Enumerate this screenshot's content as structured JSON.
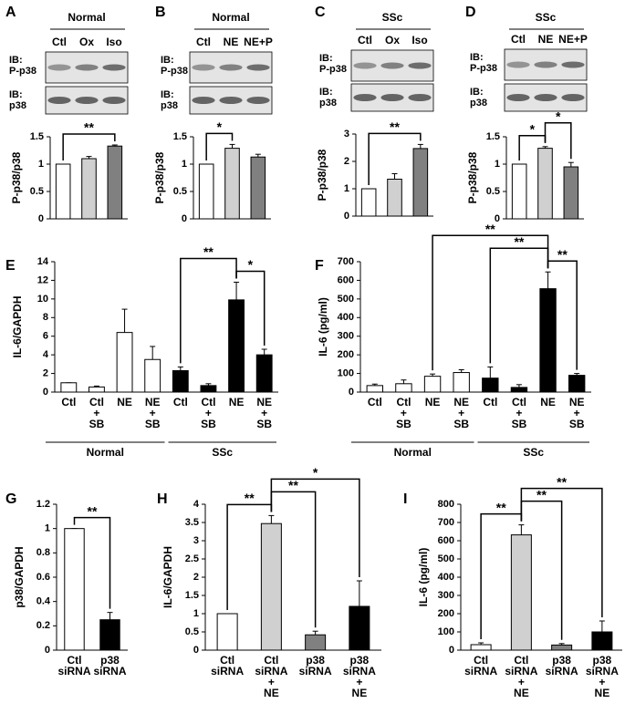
{
  "chart_data": [
    {
      "type": "bar",
      "panel": "A",
      "group": "Normal",
      "categories": [
        "Ctl",
        "Ox",
        "Iso"
      ],
      "blot_rows": [
        [
          "IB:",
          "P-p38"
        ],
        [
          "IB:",
          "p38"
        ]
      ],
      "ylabel": "P-p38/p38",
      "values": [
        1,
        1.1,
        1.33
      ],
      "errors": [
        0,
        0.04,
        0.02
      ],
      "colors": [
        "#ffffff",
        "#d0d0d0",
        "#808080"
      ],
      "ylim": [
        0,
        1.5
      ],
      "yticks": [
        0,
        0.5,
        1,
        1.5
      ],
      "significance": [
        {
          "between": [
            0,
            2
          ],
          "label": "**"
        }
      ]
    },
    {
      "type": "bar",
      "panel": "B",
      "group": "Normal",
      "categories": [
        "Ctl",
        "NE",
        "NE+P"
      ],
      "blot_rows": [
        [
          "IB:",
          "P-p38"
        ],
        [
          "IB:",
          "p38"
        ]
      ],
      "ylabel": "P-p38/p38",
      "values": [
        1,
        1.29,
        1.13
      ],
      "errors": [
        0,
        0.07,
        0.05
      ],
      "colors": [
        "#ffffff",
        "#d0d0d0",
        "#808080"
      ],
      "ylim": [
        0,
        1.5
      ],
      "yticks": [
        0,
        0.5,
        1,
        1.5
      ],
      "significance": [
        {
          "between": [
            0,
            1
          ],
          "label": "*"
        }
      ]
    },
    {
      "type": "bar",
      "panel": "C",
      "group": "SSc",
      "categories": [
        "Ctl",
        "Ox",
        "Iso"
      ],
      "blot_rows": [
        [
          "IB:",
          "P-p38"
        ],
        [
          "IB:",
          "p38"
        ]
      ],
      "ylabel": "P-p38/p38",
      "values": [
        1,
        1.35,
        2.47
      ],
      "errors": [
        0,
        0.2,
        0.15
      ],
      "colors": [
        "#ffffff",
        "#d0d0d0",
        "#808080"
      ],
      "ylim": [
        0,
        3
      ],
      "yticks": [
        0,
        1,
        2,
        3
      ],
      "significance": [
        {
          "between": [
            0,
            2
          ],
          "label": "**"
        }
      ]
    },
    {
      "type": "bar",
      "panel": "D",
      "group": "SSc",
      "categories": [
        "Ctl",
        "NE",
        "NE+P"
      ],
      "blot_rows": [
        [
          "IB:",
          "P-p38"
        ],
        [
          "IB:",
          "p38"
        ]
      ],
      "ylabel": "P-p38/p38",
      "values": [
        1,
        1.29,
        0.95
      ],
      "errors": [
        0,
        0.03,
        0.08
      ],
      "colors": [
        "#ffffff",
        "#d0d0d0",
        "#808080"
      ],
      "ylim": [
        0,
        1.5
      ],
      "yticks": [
        0,
        0.5,
        1,
        1.5
      ],
      "significance": [
        {
          "between": [
            0,
            1
          ],
          "label": "*"
        },
        {
          "between": [
            1,
            2
          ],
          "label": "*"
        }
      ]
    },
    {
      "type": "bar",
      "panel": "E",
      "ylabel": "IL-6/GAPDH",
      "categories": [
        [
          "Ctl"
        ],
        [
          "Ctl",
          "+",
          "SB"
        ],
        [
          "NE"
        ],
        [
          "NE",
          "+",
          "SB"
        ],
        [
          "Ctl"
        ],
        [
          "Ctl",
          "+",
          "SB"
        ],
        [
          "NE"
        ],
        [
          "NE",
          "+",
          "SB"
        ]
      ],
      "values": [
        1,
        0.55,
        6.4,
        3.5,
        2.3,
        0.7,
        9.9,
        4.0
      ],
      "errors": [
        0,
        0.1,
        2.5,
        1.4,
        0.4,
        0.2,
        1.9,
        0.6
      ],
      "colors": [
        "#ffffff",
        "#ffffff",
        "#ffffff",
        "#ffffff",
        "#000000",
        "#000000",
        "#000000",
        "#000000"
      ],
      "ylim": [
        0,
        14
      ],
      "yticks": [
        0,
        2,
        4,
        6,
        8,
        10,
        12,
        14
      ],
      "groups": [
        {
          "label": "Normal",
          "from": 0,
          "to": 3
        },
        {
          "label": "SSc",
          "from": 4,
          "to": 7
        }
      ],
      "significance": [
        {
          "between": [
            4,
            6
          ],
          "label": "**"
        },
        {
          "between": [
            6,
            7
          ],
          "label": "*"
        }
      ]
    },
    {
      "type": "bar",
      "panel": "F",
      "ylabel": "IL-6 (pg/ml)",
      "categories": [
        [
          "Ctl"
        ],
        [
          "Ctl",
          "+",
          "SB"
        ],
        [
          "NE"
        ],
        [
          "NE",
          "+",
          "SB"
        ],
        [
          "Ctl"
        ],
        [
          "Ctl",
          "+",
          "SB"
        ],
        [
          "NE"
        ],
        [
          "NE",
          "+",
          "SB"
        ]
      ],
      "values": [
        35,
        45,
        85,
        105,
        75,
        25,
        555,
        90
      ],
      "errors": [
        8,
        20,
        12,
        15,
        60,
        15,
        90,
        10
      ],
      "colors": [
        "#ffffff",
        "#ffffff",
        "#ffffff",
        "#ffffff",
        "#000000",
        "#000000",
        "#000000",
        "#000000"
      ],
      "ylim": [
        0,
        700
      ],
      "yticks": [
        0,
        100,
        200,
        300,
        400,
        500,
        600,
        700
      ],
      "groups": [
        {
          "label": "Normal",
          "from": 0,
          "to": 3
        },
        {
          "label": "SSc",
          "from": 4,
          "to": 7
        }
      ],
      "significance": [
        {
          "between": [
            2,
            6
          ],
          "label": "**"
        },
        {
          "between": [
            4,
            6
          ],
          "label": "**"
        },
        {
          "between": [
            6,
            7
          ],
          "label": "**"
        }
      ]
    },
    {
      "type": "bar",
      "panel": "G",
      "ylabel": "p38/GAPDH",
      "categories": [
        [
          "Ctl",
          "siRNA"
        ],
        [
          "p38",
          "siRNA"
        ]
      ],
      "values": [
        1,
        0.25
      ],
      "errors": [
        0,
        0.06
      ],
      "colors": [
        "#ffffff",
        "#000000"
      ],
      "ylim": [
        0,
        1.2
      ],
      "yticks": [
        0,
        0.2,
        0.4,
        0.6,
        0.8,
        1,
        1.2
      ],
      "significance": [
        {
          "between": [
            0,
            1
          ],
          "label": "**"
        }
      ]
    },
    {
      "type": "bar",
      "panel": "H",
      "ylabel": "IL-6/GAPDH",
      "categories": [
        [
          "Ctl",
          "siRNA"
        ],
        [
          "Ctl",
          "siRNA",
          "+",
          "NE"
        ],
        [
          "p38",
          "siRNA"
        ],
        [
          "p38",
          "siRNA",
          "+",
          "NE"
        ]
      ],
      "values": [
        1,
        3.47,
        0.42,
        1.2
      ],
      "errors": [
        0,
        0.22,
        0.1,
        0.7
      ],
      "colors": [
        "#ffffff",
        "#d0d0d0",
        "#808080",
        "#000000"
      ],
      "ylim": [
        0,
        4
      ],
      "yticks": [
        0,
        0.5,
        1,
        1.5,
        2,
        2.5,
        3,
        3.5,
        4
      ],
      "significance": [
        {
          "between": [
            0,
            1
          ],
          "label": "**"
        },
        {
          "between": [
            1,
            2
          ],
          "label": "**"
        },
        {
          "between": [
            1,
            3
          ],
          "label": "*"
        }
      ]
    },
    {
      "type": "bar",
      "panel": "I",
      "ylabel": "IL-6 (pg/ml)",
      "categories": [
        [
          "Ctl",
          "siRNA"
        ],
        [
          "Ctl",
          "siRNA",
          "+",
          "NE"
        ],
        [
          "p38",
          "siRNA"
        ],
        [
          "p38",
          "siRNA",
          "+",
          "NE"
        ]
      ],
      "values": [
        30,
        632,
        28,
        100
      ],
      "errors": [
        10,
        55,
        8,
        60
      ],
      "colors": [
        "#ffffff",
        "#d0d0d0",
        "#808080",
        "#000000"
      ],
      "ylim": [
        0,
        800
      ],
      "yticks": [
        0,
        100,
        200,
        300,
        400,
        500,
        600,
        700,
        800
      ],
      "significance": [
        {
          "between": [
            0,
            1
          ],
          "label": "**"
        },
        {
          "between": [
            1,
            2
          ],
          "label": "**"
        },
        {
          "between": [
            1,
            3
          ],
          "label": "**"
        }
      ]
    }
  ]
}
